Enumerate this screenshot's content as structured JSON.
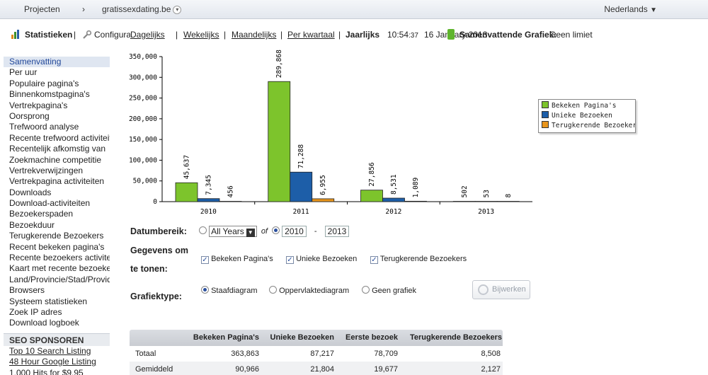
{
  "topbar": {
    "projects": "Projecten",
    "separator": "›",
    "site": "gratissexdating.be",
    "dropdown_glyph": "▾",
    "language": "Nederlands",
    "language_arrow": "▼"
  },
  "toolbar": {
    "stats_label": "Statistieken",
    "sep": "|",
    "config_label": "Configuratie",
    "daily": "Dagelijks",
    "weekly": "Wekelijks",
    "monthly": "Maandelijks",
    "quarterly": "Per kwartaal",
    "yearly": "Jaarlijks",
    "time_hm": "10:54",
    "time_s": ":37",
    "date": "16 January 2013",
    "summary_label": "Samenvattende Grafiek:",
    "summary_value": "Geen limiet"
  },
  "sidebar": {
    "items": [
      "Samenvatting",
      "Per uur",
      "Populaire pagina's",
      "Binnenkomstpagina's",
      "Vertrekpagina's",
      "Oorsprong",
      "Trefwoord analyse",
      "Recente trefwoord activiteit",
      "Recentelijk afkomstig van",
      "Zoekmachine competitie",
      "Vertrekverwijzingen",
      "Vertrekpagina activiteiten",
      "Downloads",
      "Download-activiteiten",
      "Bezoekerspaden",
      "Bezoekduur",
      "Terugkerende Bezoekers",
      "Recent bekeken pagina's",
      "Recente bezoekers activiteit",
      "Kaart met recente bezoekers",
      "Land/Provincie/Stad/Provider",
      "Browsers",
      "Systeem statistieken",
      "Zoek IP adres",
      "Download logboek"
    ],
    "seo_heading": "SEO SPONSOREN",
    "seo_links": [
      "Top 10 Search Listing",
      "48 Hour Google Listing",
      "1,000 Hits for $9.95"
    ]
  },
  "chart_data": {
    "type": "bar",
    "categories": [
      "2010",
      "2011",
      "2012",
      "2013"
    ],
    "series": [
      {
        "name": "Bekeken Pagina's",
        "color": "#7dc42c",
        "values": [
          45637,
          289868,
          27856,
          502
        ],
        "labels": [
          "45,637",
          "289,868",
          "27,856",
          "502"
        ]
      },
      {
        "name": "Unieke Bezoeken",
        "color": "#1d5ea8",
        "values": [
          7345,
          71288,
          8531,
          53
        ],
        "labels": [
          "7,345",
          "71,288",
          "8,531",
          "53"
        ]
      },
      {
        "name": "Terugkerende Bezoekers",
        "color": "#e8951c",
        "values": [
          456,
          6955,
          1089,
          8
        ],
        "labels": [
          "456",
          "6,955",
          "1,089",
          "8"
        ]
      }
    ],
    "ylim": [
      0,
      350000
    ],
    "yticks": [
      0,
      50000,
      100000,
      150000,
      200000,
      250000,
      300000,
      350000
    ],
    "ytick_labels": [
      "0",
      "50,000",
      "100,000",
      "150,000",
      "200,000",
      "250,000",
      "300,000",
      "350,000"
    ],
    "legend_position": "right"
  },
  "legend": {
    "items": [
      "Bekeken Pagina's",
      "Unieke Bezoeken",
      "Terugkerende Bezoekers"
    ]
  },
  "form": {
    "date_range_label": "Datumbereik:",
    "all_years": "All Years",
    "of": "of",
    "from_year": "2010",
    "dash": "-",
    "to_year": "2013",
    "data_label_1": "Gegevens om",
    "data_label_2": "te tonen:",
    "check_pages": "Bekeken Pagina's",
    "check_unique": "Unieke Bezoeken",
    "check_returning": "Terugkerende Bezoekers",
    "chart_type_label": "Grafiektype:",
    "opt_bar": "Staafdiagram",
    "opt_area": "Oppervlaktediagram",
    "opt_none": "Geen grafiek",
    "update_button": "Bijwerken"
  },
  "table": {
    "headers": [
      "",
      "Bekeken Pagina's",
      "Unieke Bezoeken",
      "Eerste bezoek",
      "Terugkerende Bezoekers"
    ],
    "rows": [
      [
        "Totaal",
        "363,863",
        "87,217",
        "78,709",
        "8,508"
      ],
      [
        "Gemiddeld",
        "90,966",
        "21,804",
        "19,677",
        "2,127"
      ]
    ]
  }
}
